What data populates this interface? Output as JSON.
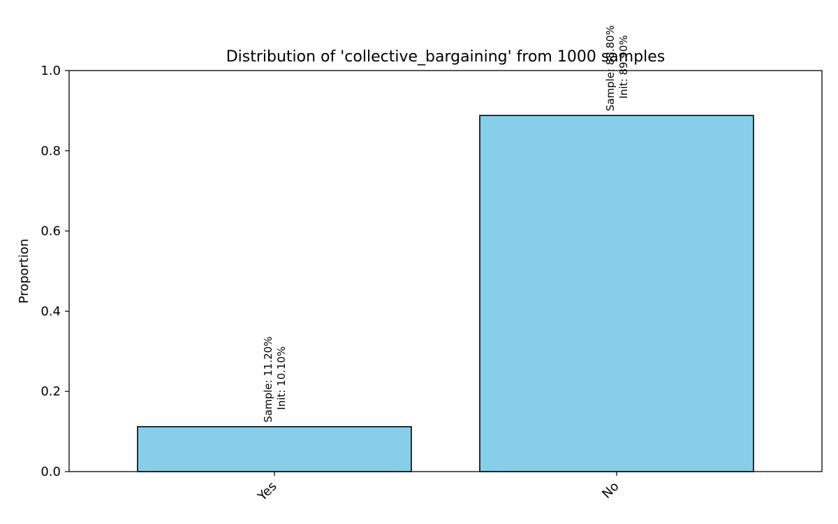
{
  "chart_data": {
    "type": "bar",
    "title": "Distribution of 'collective_bargaining' from 1000 samples",
    "xlabel": "",
    "ylabel": "Proportion",
    "ylim": [
      0,
      1.0
    ],
    "yticks": [
      "0.0",
      "0.2",
      "0.4",
      "0.6",
      "0.8",
      "1.0"
    ],
    "categories": [
      "Yes",
      "No"
    ],
    "values": [
      0.112,
      0.888
    ],
    "bar_labels": [
      {
        "sample": "Sample: 11.20%",
        "init": "Init: 10.10%"
      },
      {
        "sample": "Sample: 88.80%",
        "init": "Init: 89.90%"
      }
    ],
    "bar_color": "#87CEEB",
    "edge_color": "#000000",
    "grid": false
  }
}
